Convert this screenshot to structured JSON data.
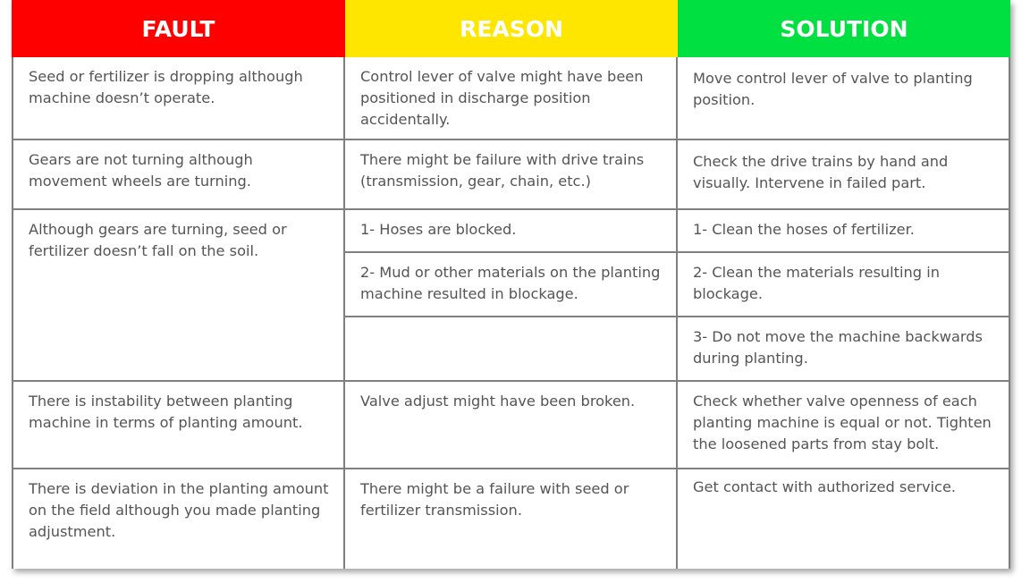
{
  "headers": {
    "fault": {
      "label": "FAULT",
      "color": "#ff0000"
    },
    "reason": {
      "label": "REASON",
      "color": "#ffe600"
    },
    "solution": {
      "label": "SOLUTION",
      "color": "#00e040"
    }
  },
  "rows": {
    "r1": {
      "fault": "Seed or fertilizer is dropping although machine doesn’t operate.",
      "reason": "Control lever of valve might have been positioned in discharge position accidentally.",
      "solution": "Move control lever of valve to planting position."
    },
    "r2": {
      "fault": "Gears are not turning although movement wheels are turning.",
      "reason": "There might be failure with drive trains (transmission, gear, chain, etc.)",
      "solution": "Check the drive trains by hand and visually. Intervene in failed part."
    },
    "r3": {
      "fault": "Although gears are turning, seed or fertilizer doesn’t fall on the soil.",
      "reason_1": "1- Hoses are blocked.",
      "reason_2": "2- Mud or other materials on the planting machine resulted in blockage.",
      "solution_1": "1- Clean the hoses of fertilizer.",
      "solution_2": "2- Clean the materials resulting in blockage.",
      "solution_3": "3- Do not move the machine backwards during planting."
    },
    "r4": {
      "fault": "There is instability between planting machine in terms of planting amount.",
      "reason": "Valve adjust might have been broken.",
      "solution": "Check whether valve openness of each planting machine is equal or not. Tighten the loosened parts from stay bolt."
    },
    "r5": {
      "fault": "There is deviation in the planting amount on the field although you made planting adjustment.",
      "reason": "There might be a failure with seed or fertilizer transmission.",
      "solution": "Get contact with authorized service."
    }
  }
}
